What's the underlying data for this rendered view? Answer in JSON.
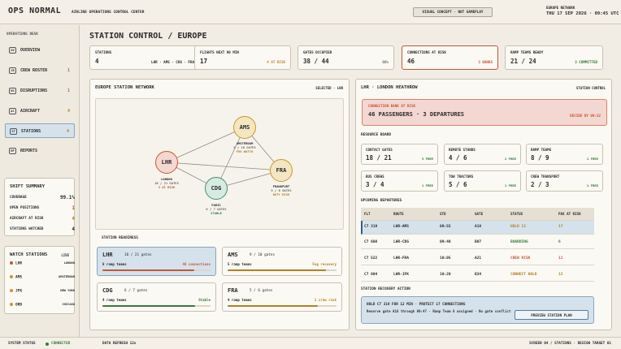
{
  "header": {
    "brand": "OPS NORMAL",
    "center_title": "AIRLINE OPERATIONS CONTROL CENTER",
    "concept_badge": "VISUAL CONCEPT · NOT GAMEPLAY",
    "region": "EUROPE NETWORK",
    "datetime": "THU 17 SEP 2026 · 09:45 UTC"
  },
  "sidebar": {
    "heading": "OPERATIONS DESK",
    "items": [
      {
        "key": "OV",
        "label": "OVERVIEW",
        "count": ""
      },
      {
        "key": "CR",
        "label": "CREW ROSTER",
        "count": "1"
      },
      {
        "key": "DS",
        "label": "DISRUPTIONS",
        "count": "1"
      },
      {
        "key": "AC",
        "label": "AIRCRAFT",
        "count": "4"
      },
      {
        "key": "ST",
        "label": "STATIONS",
        "count": "4"
      },
      {
        "key": "RP",
        "label": "REPORTS",
        "count": ""
      }
    ],
    "summary": {
      "title": "SHIFT SUMMARY",
      "rows": [
        {
          "label": "COVERAGE",
          "value": "99.1%"
        },
        {
          "label": "OPEN POSITIONS",
          "value": "1"
        },
        {
          "label": "AIRCRAFT AT RISK",
          "value": "4"
        },
        {
          "label": "STATIONS WATCHED",
          "value": "4"
        }
      ]
    },
    "watch": {
      "title": "WATCH STATIONS",
      "live": "LIVE",
      "rows": [
        {
          "code": "LHR",
          "city": "LONDON",
          "color": "#c7572f"
        },
        {
          "code": "AMS",
          "city": "AMSTERDAM",
          "color": "#c9962e"
        },
        {
          "code": "JFK",
          "city": "NEW YORK",
          "color": "#c9962e"
        },
        {
          "code": "ORD",
          "city": "CHICAGO",
          "color": "#c9962e"
        }
      ]
    }
  },
  "page_title": "STATION CONTROL / EUROPE",
  "kpis": [
    {
      "label": "STATIONS",
      "value": "4",
      "detail": "LHR · AMS · CDG · FRA",
      "color": "#333"
    },
    {
      "label": "FLIGHTS NEXT 90 MIN",
      "value": "17",
      "detail": "4 AT RISK",
      "color": "#c08a20"
    },
    {
      "label": "GATES OCCUPIED",
      "value": "38 / 44",
      "detail": "86%",
      "color": "#555"
    },
    {
      "label": "CONNECTIONS AT RISK",
      "value": "46",
      "detail": "3 BANKS",
      "color": "#c7572f"
    },
    {
      "label": "RAMP TEAMS READY",
      "value": "21 / 24",
      "detail": "3 COMMITTED",
      "color": "#357a38"
    }
  ],
  "network": {
    "title": "EUROPE STATION NETWORK",
    "selected": "SELECTED · LHR",
    "nodes": [
      {
        "code": "LHR",
        "city": "LONDON",
        "gates": "18 / 21 GATES",
        "status": "3 AT RISK",
        "fill": "#f3d7d2",
        "stroke": "#c7572f",
        "scolor": "#c7572f"
      },
      {
        "code": "AMS",
        "city": "AMSTERDAM",
        "gates": "9 / 10 GATES",
        "status": "FOG WATCH",
        "fill": "#f5e6c2",
        "stroke": "#c9962e",
        "scolor": "#b08020"
      },
      {
        "code": "CDG",
        "city": "PARIS",
        "gates": "6 / 7 GATES",
        "status": "STABLE",
        "fill": "#d6ebe2",
        "stroke": "#4e8a6e",
        "scolor": "#357a38"
      },
      {
        "code": "FRA",
        "city": "FRANKFURT",
        "gates": "5 / 6 GATES",
        "status": "DUTY RISK",
        "fill": "#f5e6c2",
        "stroke": "#c9962e",
        "scolor": "#b08020"
      }
    ],
    "readiness_title": "STATION READINESS",
    "readiness": [
      {
        "code": "LHR",
        "gates": "18 / 21 gates",
        "teams": "8 ramp teams",
        "status": "46 connections",
        "scolor": "#c7572f",
        "fill": "#c7572f",
        "pct": 0.85,
        "bg": "#d5e2ec"
      },
      {
        "code": "AMS",
        "gates": "9 / 10 gates",
        "teams": "5 ramp teams",
        "status": "Fog recovery",
        "scolor": "#b08020",
        "fill": "#b08020",
        "pct": 0.9,
        "bg": "#fbf9f4"
      },
      {
        "code": "CDG",
        "gates": "6 / 7 gates",
        "teams": "4 ramp teams",
        "status": "Stable",
        "scolor": "#357a38",
        "fill": "#357a38",
        "pct": 0.86,
        "bg": "#fbf9f4"
      },
      {
        "code": "FRA",
        "gates": "5 / 6 gates",
        "teams": "4 ramp teams",
        "status": "1 crew risk",
        "scolor": "#b08020",
        "fill": "#b08020",
        "pct": 0.83,
        "bg": "#fbf9f4"
      }
    ]
  },
  "station": {
    "title": "LHR · LONDON HEATHROW",
    "tag": "STATION CONTROL",
    "alert": {
      "label": "CONNECTION BANK AT RISK",
      "value": "46 PASSENGERS · 3 DEPARTURES",
      "deadline": "DECIDE BY 09:52"
    },
    "resource_title": "RESOURCE BOARD",
    "resources": [
      {
        "label": "CONTACT GATES",
        "value": "18 / 21",
        "free": "3 FREE"
      },
      {
        "label": "REMOTE STANDS",
        "value": "4 / 6",
        "free": "2 FREE"
      },
      {
        "label": "RAMP TEAMS",
        "value": "8 / 9",
        "free": "1 FREE"
      },
      {
        "label": "BUS CREWS",
        "value": "3 / 4",
        "free": "1 FREE"
      },
      {
        "label": "TOW TRACTORS",
        "value": "5 / 6",
        "free": "1 FREE"
      },
      {
        "label": "CREW TRANSPORT",
        "value": "2 / 3",
        "free": "1 FREE"
      }
    ],
    "departures_title": "UPCOMING DEPARTURES",
    "columns": [
      "FLT",
      "ROUTE",
      "STD",
      "GATE",
      "STATUS",
      "PAX AT RISK"
    ],
    "departures": [
      {
        "flt": "C7 319",
        "route": "LHR-AMS",
        "std": "09:55",
        "gate": "A18",
        "status": "HOLD 12",
        "pax": "17",
        "scolor": "#b08020"
      },
      {
        "flt": "C7 608",
        "route": "LHR-CDG",
        "std": "09:40",
        "gate": "B07",
        "status": "BOARDING",
        "pax": "6",
        "scolor": "#357a38"
      },
      {
        "flt": "C7 522",
        "route": "LHR-FRA",
        "std": "10:05",
        "gate": "A21",
        "status": "CREW RISK",
        "pax": "11",
        "scolor": "#c7572f"
      },
      {
        "flt": "C7 804",
        "route": "LHR-JFK",
        "std": "10:20",
        "gate": "B34",
        "status": "CONNECT HOLD",
        "pax": "12",
        "scolor": "#b08020"
      }
    ],
    "recovery_title": "STATION RECOVERY ACTION",
    "recovery_line1": "HOLD C7 319 FOR 12 MIN · PROTECT 17 CONNECTIONS",
    "recovery_line2": "Reserve gate A18 through 09:47 · Ramp Team 8 assigned · No gate conflict",
    "preview_btn": "PREVIEW STATION PLAN"
  },
  "footer": {
    "system_label": "SYSTEM STATUS",
    "system_value": "CONNECTED",
    "refresh": "DATA REFRESH 12s",
    "screen": "SCREEN 04 / STATIONS  ·  DESIGN TARGET 01"
  }
}
